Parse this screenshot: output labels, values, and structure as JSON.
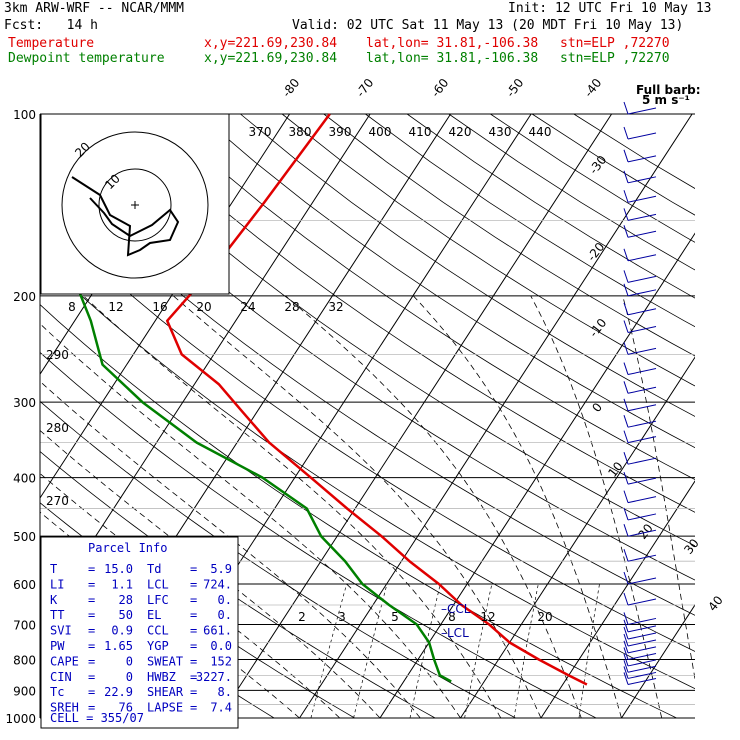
{
  "header": {
    "model": "3km ARW-WRF -- NCAR/MMM",
    "init": "Init: 12 UTC Fri 10 May 13",
    "fcst": "Fcst:   14 h",
    "valid": "Valid: 02 UTC Sat 11 May 13 (20 MDT Fri 10 May 13)",
    "series_label_temp": "Temperature",
    "series_label_dew": "Dewpoint temperature",
    "xy": "x,y=221.69,230.84",
    "latlon": "lat,lon= 31.81,-106.38",
    "stn": "stn=ELP ,72270",
    "barb_note_1": "Full barb:",
    "barb_note_2": "5 m s⁻¹"
  },
  "colors": {
    "temperature": "#e00000",
    "dewpoint": "#008000",
    "wind": "#0000a0",
    "parcel_text": "#0000c0"
  },
  "chart_data": {
    "type": "line",
    "diagram": "skew-T log-p",
    "pressure_levels": [
      100,
      200,
      300,
      400,
      500,
      600,
      700,
      800,
      900,
      1000
    ],
    "temperature_ticks": [
      -80,
      -70,
      -60,
      -50,
      -40,
      -30,
      -20,
      -10,
      0,
      10,
      20,
      30,
      40
    ],
    "theta_ticks": [
      370,
      380,
      390,
      400,
      410,
      420,
      430,
      440
    ],
    "mixing_ratio_ticks": [
      2,
      3,
      5,
      8,
      12,
      20
    ],
    "wind_speed_ticks": [
      8,
      12,
      16,
      20,
      24,
      28,
      32
    ],
    "wind_speed_unit": "kts",
    "theta_e_ticks": [
      270,
      280,
      290
    ],
    "series": [
      {
        "name": "Temperature",
        "points": [
          [
            100,
            -55
          ],
          [
            140,
            -56
          ],
          [
            180,
            -57
          ],
          [
            220,
            -58.5
          ],
          [
            250,
            -54
          ],
          [
            280,
            -47
          ],
          [
            310,
            -42
          ],
          [
            350,
            -36
          ],
          [
            400,
            -28
          ],
          [
            450,
            -21
          ],
          [
            500,
            -14.5
          ],
          [
            550,
            -9
          ],
          [
            600,
            -3.5
          ],
          [
            650,
            1
          ],
          [
            700,
            6
          ],
          [
            750,
            10
          ],
          [
            800,
            15
          ],
          [
            850,
            20
          ],
          [
            880,
            23
          ]
        ]
      },
      {
        "name": "Dewpoint temperature",
        "points": [
          [
            100,
            -80
          ],
          [
            130,
            -75
          ],
          [
            160,
            -73
          ],
          [
            190,
            -73
          ],
          [
            220,
            -68
          ],
          [
            260,
            -63
          ],
          [
            300,
            -55
          ],
          [
            350,
            -45
          ],
          [
            400,
            -34
          ],
          [
            450,
            -26
          ],
          [
            500,
            -22
          ],
          [
            550,
            -17
          ],
          [
            600,
            -13
          ],
          [
            650,
            -8
          ],
          [
            700,
            -3
          ],
          [
            750,
            0
          ],
          [
            800,
            2
          ],
          [
            850,
            4
          ],
          [
            870,
            5.9
          ]
        ]
      }
    ],
    "parcel_level_labels": [
      "CCL",
      "LCL"
    ],
    "hodograph": {
      "ring_labels": [
        "10",
        "20"
      ]
    },
    "wind_profile_note": "Wind barbs plotted at right for each level (full barb 5 m/s)"
  },
  "parcel": {
    "title": "Parcel Info",
    "rows": [
      {
        "l1": "T",
        "v1": "15.0",
        "l2": "Td",
        "v2": "5.9"
      },
      {
        "l1": "LI",
        "v1": "1.1",
        "l2": "LCL",
        "v2": "724."
      },
      {
        "l1": "K",
        "v1": "28",
        "l2": "LFC",
        "v2": "0."
      },
      {
        "l1": "TT",
        "v1": "50",
        "l2": "EL",
        "v2": "0."
      },
      {
        "l1": "SVI",
        "v1": "0.9",
        "l2": "CCL",
        "v2": "661."
      },
      {
        "l1": "PW",
        "v1": "1.65",
        "l2": "YGP",
        "v2": "0.0"
      },
      {
        "l1": "CAPE",
        "v1": "0",
        "l2": "SWEAT",
        "v2": "152"
      },
      {
        "l1": "CIN",
        "v1": "0",
        "l2": "HWBZ",
        "v2": "3227."
      },
      {
        "l1": "Tc",
        "v1": "22.9",
        "l2": "SHEAR",
        "v2": "8."
      },
      {
        "l1": "SREH",
        "v1": "76",
        "l2": "LAPSE",
        "v2": "7.4"
      }
    ],
    "cell": "CELL = 355/07"
  }
}
